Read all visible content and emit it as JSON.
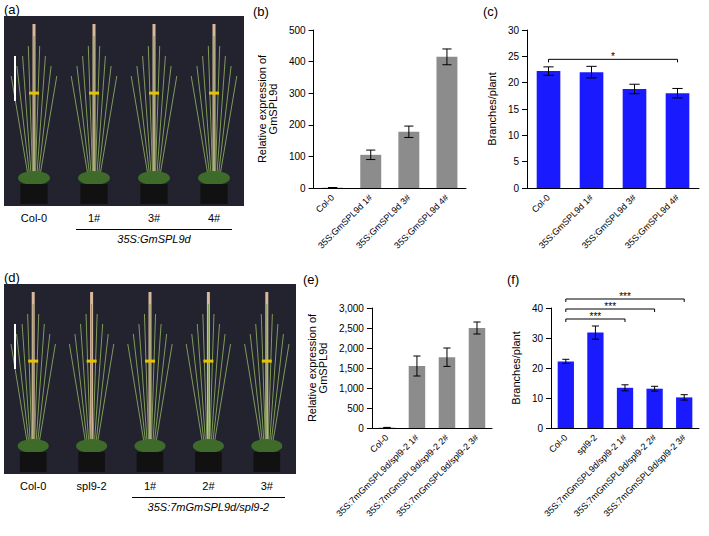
{
  "chart_data": [
    {
      "type": "bar",
      "title": "(b)",
      "categories": [
        "Col-0",
        "35S:GmSPL9d 1#",
        "35S:GmSPL9d 3#",
        "35S:GmSPL9d 4#"
      ],
      "values": [
        1,
        105,
        178,
        415
      ],
      "errors": [
        0.5,
        15,
        18,
        25
      ],
      "color": "#8c8c8c",
      "ylabel": "Relative expression of\nGmSPL9d",
      "ylim": [
        0,
        500
      ],
      "yticks": [
        0,
        100,
        200,
        300,
        400,
        500
      ],
      "grid": false
    },
    {
      "type": "bar",
      "title": "(c)",
      "categories": [
        "Col-0",
        "35S:GmSPL9d 1#",
        "35S:GmSPL9d 3#",
        "35S:GmSPL9d 4#"
      ],
      "values": [
        22.2,
        22,
        18.8,
        18
      ],
      "errors": [
        0.8,
        1.1,
        0.9,
        0.9
      ],
      "color": "#1a1aff",
      "ylabel": "Branches/plant",
      "ylim": [
        0,
        30
      ],
      "yticks": [
        0,
        5,
        10,
        15,
        20,
        25,
        30
      ],
      "grid": false,
      "annotations": [
        {
          "from": "Col-0",
          "to": "35S:GmSPL9d 4#",
          "text": "*"
        }
      ]
    },
    {
      "type": "bar",
      "title": "(e)",
      "categories": [
        "Col-0",
        "35S:7mGmSPL9d/spl9-2 1#",
        "35S:7mGmSPL9d/spl9-2 2#",
        "35S:7mGmSPL9d/spl9-2 3#"
      ],
      "values": [
        10,
        1550,
        1770,
        2500
      ],
      "errors": [
        5,
        250,
        230,
        150
      ],
      "color": "#8c8c8c",
      "ylabel": "Relative expression of\nGmSPL9d",
      "ylim": [
        0,
        3000
      ],
      "yticks": [
        0,
        500,
        1000,
        1500,
        2000,
        2500,
        3000
      ],
      "grid": false
    },
    {
      "type": "bar",
      "title": "(f)",
      "categories": [
        "Col-0",
        "spl9-2",
        "35S:7mGmSPL9d/spl9-2 1#",
        "35S:7mGmSPL9d/spl9-2 2#",
        "35S:7mGmSPL9d/spl9-2 3#"
      ],
      "values": [
        22.2,
        31.8,
        13.4,
        13.1,
        10.2
      ],
      "errors": [
        0.7,
        2.2,
        1.0,
        0.8,
        0.9
      ],
      "color": "#1a1aff",
      "ylabel": "Branches/plant",
      "ylim": [
        0,
        40
      ],
      "yticks": [
        0,
        10,
        20,
        30,
        40
      ],
      "grid": false,
      "annotations": [
        {
          "from": "Col-0",
          "to": "35S:7mGmSPL9d/spl9-2 1#",
          "text": "***"
        },
        {
          "from": "Col-0",
          "to": "35S:7mGmSPL9d/spl9-2 2#",
          "text": "***"
        },
        {
          "from": "Col-0",
          "to": "35S:7mGmSPL9d/spl9-2 3#",
          "text": "***"
        }
      ]
    }
  ],
  "photos": [
    {
      "title": "(a)",
      "plant_labels": [
        "Col-0",
        "1#",
        "3#",
        "4#"
      ],
      "group": {
        "label": "35S:GmSPL9d",
        "from": 1
      }
    },
    {
      "title": "(d)",
      "plant_labels": [
        "Col-0",
        "spl9-2",
        "1#",
        "2#",
        "3#"
      ],
      "group": {
        "label": "35S:7mGmSPL9d/spl9-2",
        "from": 2
      }
    }
  ]
}
